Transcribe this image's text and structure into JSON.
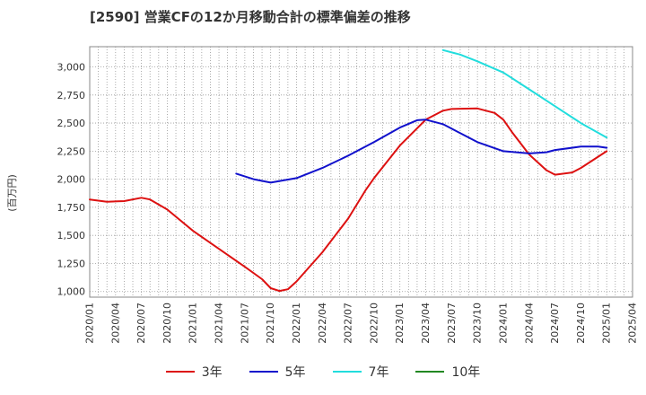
{
  "chart_data": {
    "type": "line",
    "title": "[2590]  営業CFの12か月移動合計の標準偏差の推移",
    "ylabel": "(百万円)",
    "xlabel": "",
    "ylim": [
      950,
      3180
    ],
    "yticks": [
      1000,
      1250,
      1500,
      1750,
      2000,
      2250,
      2500,
      2750,
      3000
    ],
    "ytick_labels": [
      "1,000",
      "1,250",
      "1,500",
      "1,750",
      "2,000",
      "2,250",
      "2,500",
      "2,750",
      "3,000"
    ],
    "xlim": [
      "2020/01",
      "2025/04"
    ],
    "xtick_labels": [
      "2020/01",
      "2020/04",
      "2020/07",
      "2020/10",
      "2021/01",
      "2021/04",
      "2021/07",
      "2021/10",
      "2022/01",
      "2022/04",
      "2022/07",
      "2022/10",
      "2023/01",
      "2023/04",
      "2023/07",
      "2023/10",
      "2024/01",
      "2024/04",
      "2024/07",
      "2024/10",
      "2025/01",
      "2025/04"
    ],
    "grid": true,
    "legend_position": "bottom",
    "series": [
      {
        "name": "3年",
        "color": "#dd1111",
        "points": [
          [
            "2020/01",
            1820
          ],
          [
            "2020/03",
            1800
          ],
          [
            "2020/05",
            1805
          ],
          [
            "2020/07",
            1835
          ],
          [
            "2020/08",
            1820
          ],
          [
            "2020/10",
            1730
          ],
          [
            "2021/01",
            1540
          ],
          [
            "2021/04",
            1380
          ],
          [
            "2021/07",
            1220
          ],
          [
            "2021/09",
            1110
          ],
          [
            "2021/10",
            1030
          ],
          [
            "2021/11",
            1005
          ],
          [
            "2021/12",
            1020
          ],
          [
            "2022/01",
            1090
          ],
          [
            "2022/04",
            1350
          ],
          [
            "2022/07",
            1650
          ],
          [
            "2022/09",
            1900
          ],
          [
            "2022/10",
            2010
          ],
          [
            "2023/01",
            2300
          ],
          [
            "2023/04",
            2530
          ],
          [
            "2023/06",
            2610
          ],
          [
            "2023/07",
            2625
          ],
          [
            "2023/10",
            2630
          ],
          [
            "2023/12",
            2590
          ],
          [
            "2024/01",
            2530
          ],
          [
            "2024/02",
            2420
          ],
          [
            "2024/04",
            2220
          ],
          [
            "2024/06",
            2080
          ],
          [
            "2024/07",
            2040
          ],
          [
            "2024/09",
            2060
          ],
          [
            "2024/10",
            2100
          ],
          [
            "2025/01",
            2250
          ]
        ]
      },
      {
        "name": "5年",
        "color": "#1111cc",
        "points": [
          [
            "2021/06",
            2050
          ],
          [
            "2021/08",
            2000
          ],
          [
            "2021/10",
            1970
          ],
          [
            "2022/01",
            2010
          ],
          [
            "2022/04",
            2100
          ],
          [
            "2022/07",
            2210
          ],
          [
            "2022/10",
            2330
          ],
          [
            "2023/01",
            2460
          ],
          [
            "2023/03",
            2525
          ],
          [
            "2023/04",
            2530
          ],
          [
            "2023/06",
            2490
          ],
          [
            "2023/07",
            2450
          ],
          [
            "2023/10",
            2330
          ],
          [
            "2024/01",
            2250
          ],
          [
            "2024/04",
            2230
          ],
          [
            "2024/06",
            2240
          ],
          [
            "2024/07",
            2260
          ],
          [
            "2024/10",
            2290
          ],
          [
            "2024/12",
            2290
          ],
          [
            "2025/01",
            2280
          ]
        ]
      },
      {
        "name": "7年",
        "color": "#22dddd",
        "points": [
          [
            "2023/06",
            3150
          ],
          [
            "2023/08",
            3110
          ],
          [
            "2023/10",
            3050
          ],
          [
            "2024/01",
            2950
          ],
          [
            "2024/04",
            2800
          ],
          [
            "2024/07",
            2650
          ],
          [
            "2024/10",
            2500
          ],
          [
            "2025/01",
            2370
          ]
        ]
      },
      {
        "name": "10年",
        "color": "#228822",
        "points": []
      }
    ]
  }
}
